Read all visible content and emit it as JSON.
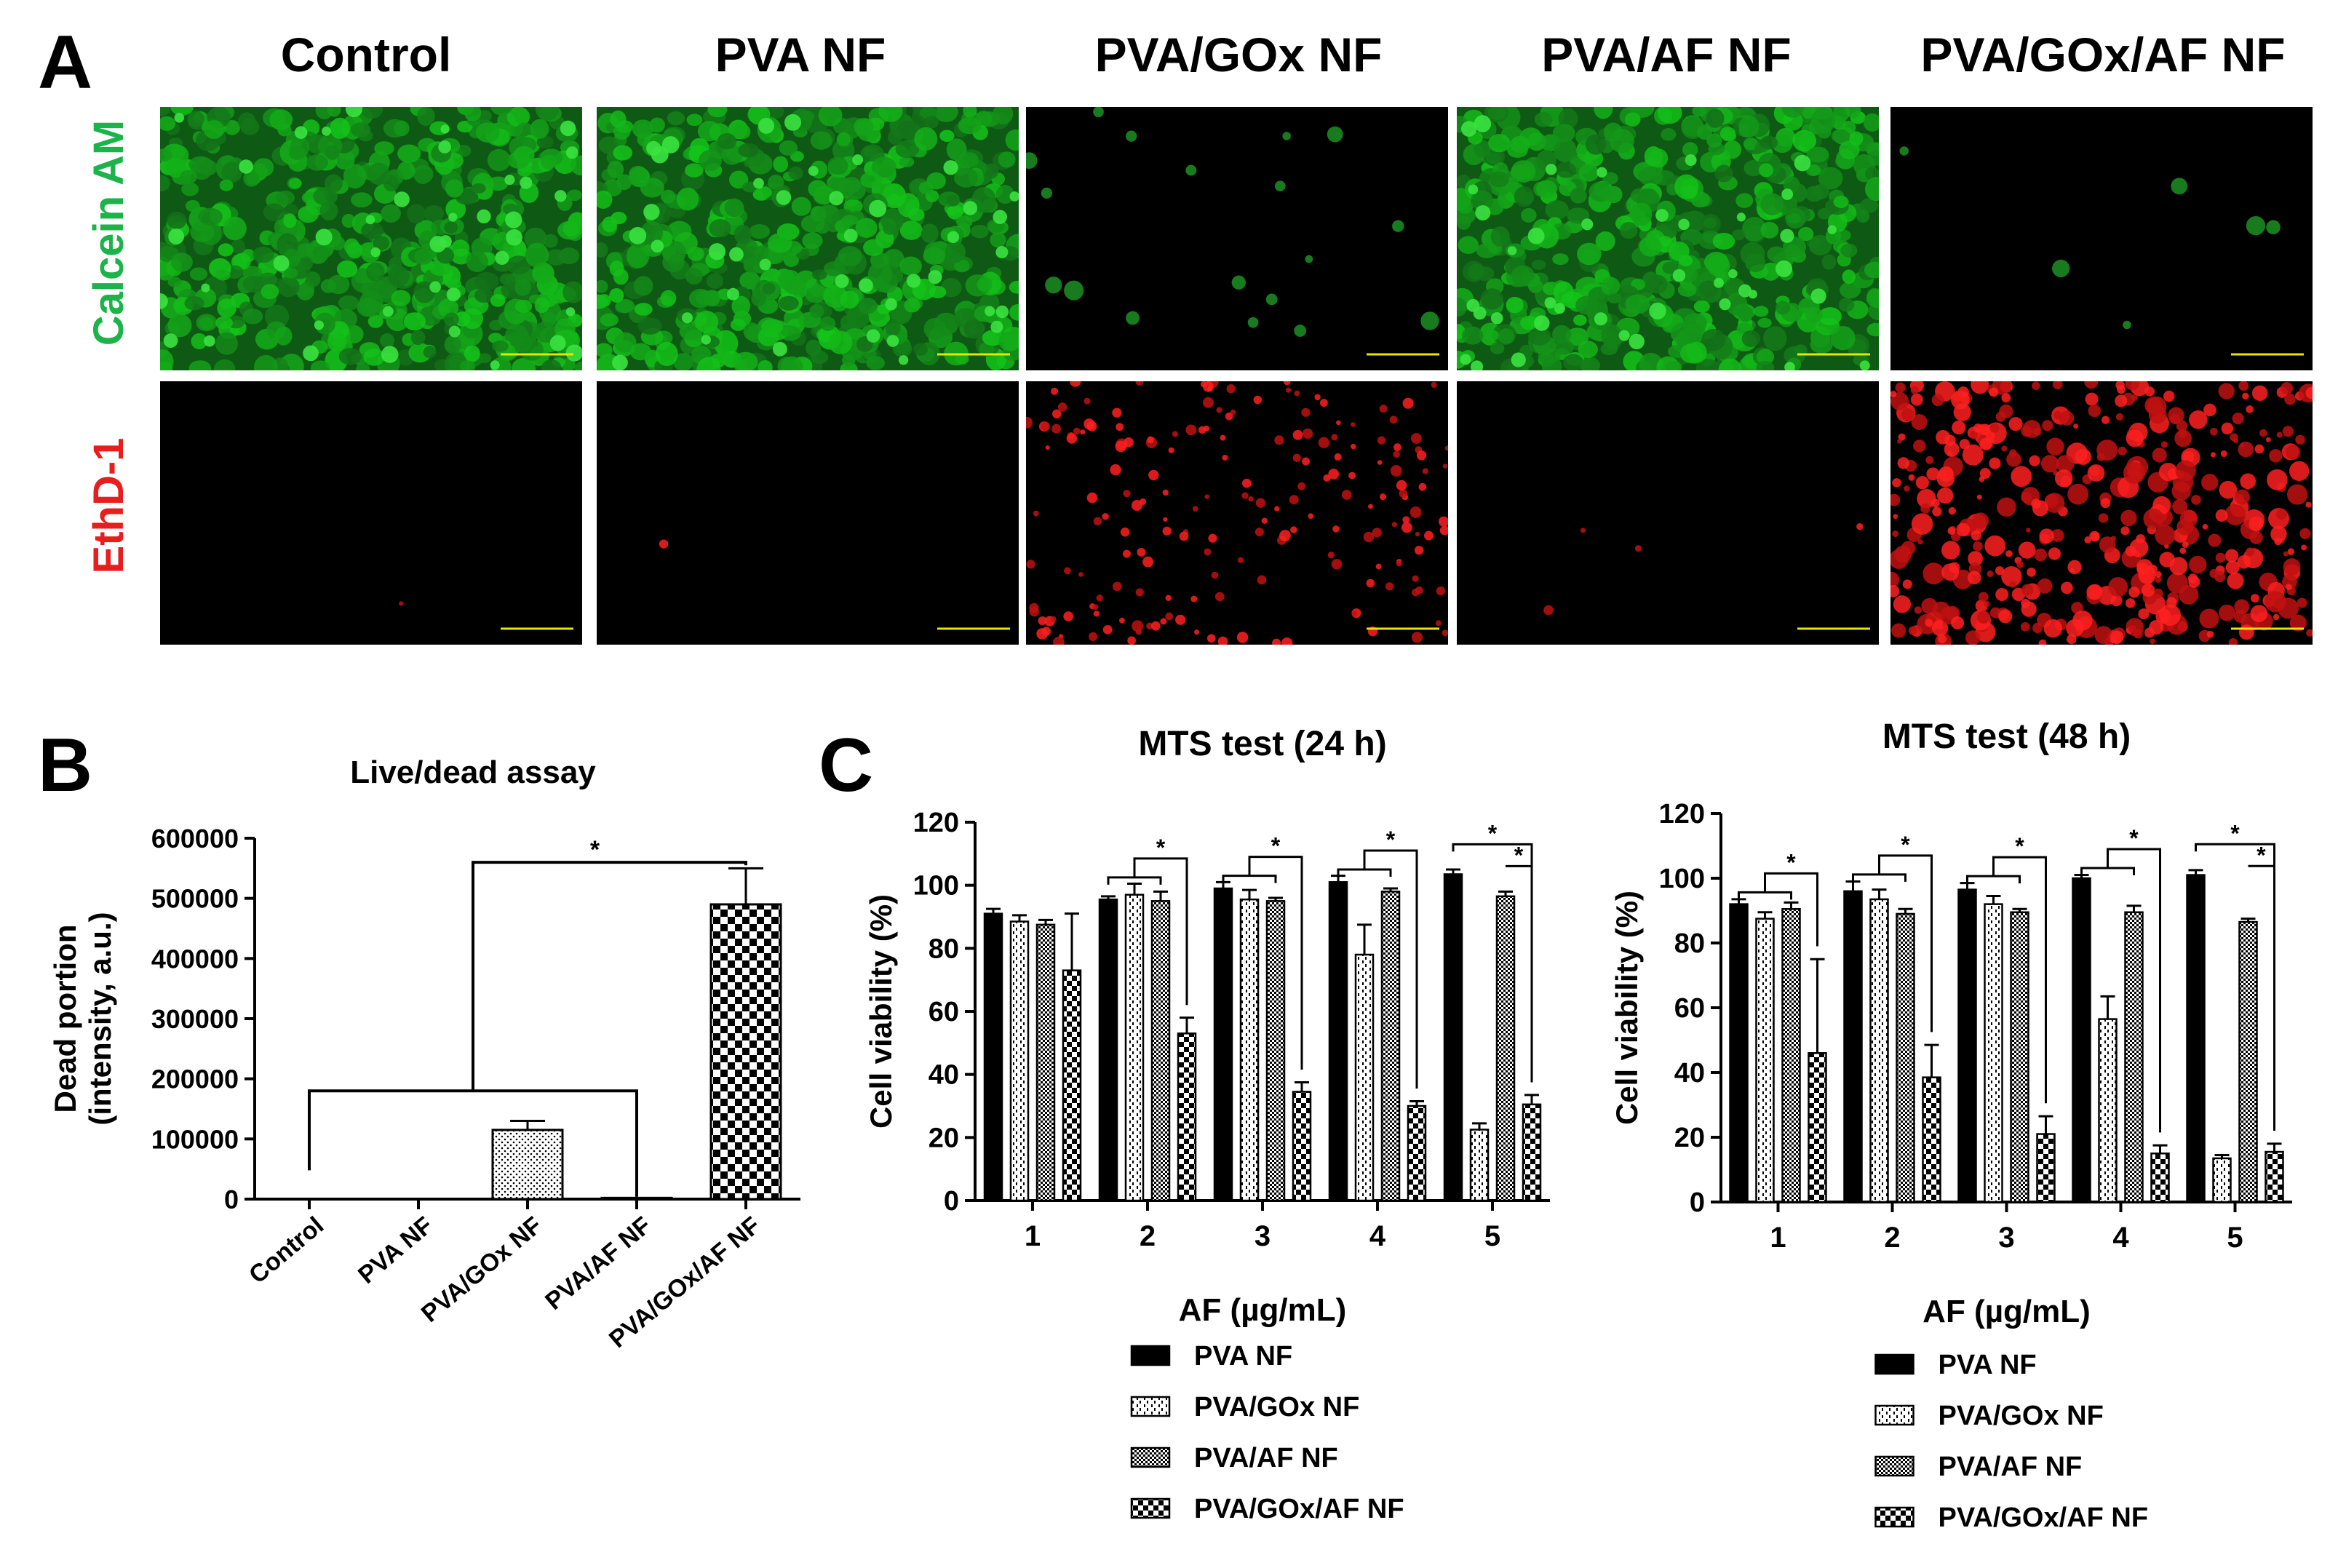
{
  "panel_labels": {
    "a": "A",
    "b": "B",
    "c": "C"
  },
  "microscopy": {
    "columns": [
      "Control",
      "PVA NF",
      "PVA/GOx NF",
      "PVA/AF NF",
      "PVA/GOx/AF NF"
    ],
    "rows": [
      {
        "label": "Calcein AM",
        "color": "#1bb34a"
      },
      {
        "label": "EthD-1",
        "color": "#e81d1d"
      }
    ]
  },
  "chart_data": [
    {
      "type": "bar",
      "title": "Live/dead assay",
      "ylabel": "Dead portion\n(intensity, a.u.)",
      "ylim": [
        0,
        600000
      ],
      "yticks": [
        "0",
        "100000",
        "200000",
        "300000",
        "400000",
        "500000",
        "600000"
      ],
      "categories": [
        "Control",
        "PVA NF",
        "PVA/GOx NF",
        "PVA/AF NF",
        "PVA/GOx/AF NF"
      ],
      "values": [
        0,
        0,
        115000,
        2000,
        490000
      ],
      "errors": [
        0,
        0,
        15000,
        0,
        60000
      ],
      "significance": [
        "*"
      ]
    },
    {
      "type": "bar",
      "title": "MTS test (24 h)",
      "xlabel": "AF (µg/mL)",
      "ylabel": "Cell viability (%)",
      "ylim": [
        0,
        120
      ],
      "yticks": [
        "0",
        "20",
        "40",
        "60",
        "80",
        "100",
        "120"
      ],
      "categories": [
        "1",
        "2",
        "3",
        "4",
        "5"
      ],
      "series": [
        {
          "name": "PVA NF",
          "values": [
            91,
            95.5,
            99,
            101,
            103.5
          ],
          "errors": [
            1.5,
            1,
            2,
            2,
            1.5
          ]
        },
        {
          "name": "PVA/GOx NF",
          "values": [
            88.5,
            97,
            95.5,
            78,
            22.5
          ],
          "errors": [
            2,
            3.5,
            3,
            9.5,
            2
          ]
        },
        {
          "name": "PVA/AF NF",
          "values": [
            87.5,
            95,
            95,
            98,
            96.5
          ],
          "errors": [
            1.5,
            3,
            1,
            1,
            1.5
          ]
        },
        {
          "name": "PVA/GOx/AF NF",
          "values": [
            73,
            53,
            34.5,
            30,
            30.5
          ],
          "errors": [
            18,
            5,
            3,
            1.5,
            3
          ]
        }
      ],
      "significance": [
        "*",
        "*",
        "*",
        "*",
        "*"
      ]
    },
    {
      "type": "bar",
      "title": "MTS test (48 h)",
      "xlabel": "AF (µg/mL)",
      "ylabel": "Cell viability (%)",
      "ylim": [
        0,
        120
      ],
      "yticks": [
        "0",
        "20",
        "40",
        "60",
        "80",
        "100",
        "120"
      ],
      "categories": [
        "1",
        "2",
        "3",
        "4",
        "5"
      ],
      "series": [
        {
          "name": "PVA NF",
          "values": [
            92,
            96,
            96.5,
            100,
            101
          ],
          "errors": [
            1.5,
            3,
            2,
            1,
            1.5
          ]
        },
        {
          "name": "PVA/GOx NF",
          "values": [
            87.5,
            93.5,
            92,
            56.5,
            13.5
          ],
          "errors": [
            2,
            3,
            2.5,
            7,
            1
          ]
        },
        {
          "name": "PVA/AF NF",
          "values": [
            90.5,
            89,
            89.5,
            89.5,
            86.5
          ],
          "errors": [
            2,
            1.5,
            1,
            2,
            1
          ]
        },
        {
          "name": "PVA/GOx/AF NF",
          "values": [
            46,
            38.5,
            21,
            15,
            15.5
          ],
          "errors": [
            29,
            10,
            5.5,
            2.5,
            2.5
          ]
        }
      ],
      "significance": [
        "*",
        "*",
        "*",
        "*",
        "*"
      ]
    }
  ]
}
